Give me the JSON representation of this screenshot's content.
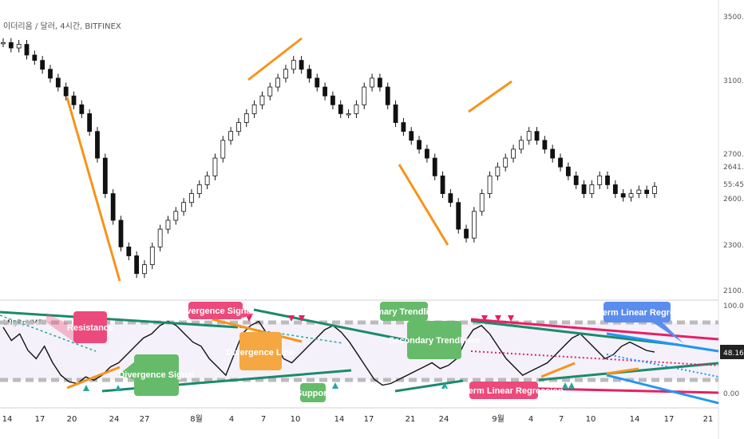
{
  "header": {
    "title": "이더리움 / 달러, 4시간, BITFINEX",
    "osc_label": "LNgRpVMFII ‧"
  },
  "price_axis": {
    "ticks": [
      "3500.00",
      "3100.00",
      "2700.00",
      "2300.00",
      "2100.00"
    ],
    "last_labels": [
      "2641.50",
      "55:45",
      "2600.00"
    ]
  },
  "osc_axis": {
    "ticks": [
      "100.00",
      "0.00"
    ],
    "last_value": "48.16"
  },
  "x_axis": {
    "ticks": [
      "14",
      "17",
      "20",
      "24",
      "27",
      "8월",
      "4",
      "7",
      "10",
      "14",
      "17",
      "21",
      "24",
      "9월",
      "4",
      "7",
      "10",
      "14",
      "17",
      "21"
    ]
  },
  "annotations": {
    "resistance": "Resistance",
    "divergence_signal_top": "Divergence Signal",
    "divergence_signal_bottom": "Divergence Signal",
    "divergence_line": "Divergence Line",
    "support": "Support",
    "primary_trendlines": "Primary Trendlines",
    "secondary_trendlines": "Secondary Trendlines",
    "longterm_regression": "Longterm Linear Regression",
    "shortterm_regression": "Shortterm Linear Regression"
  },
  "colors": {
    "up": "#26a69a",
    "down": "#ef5350",
    "candle": "#111111",
    "orange": "#f7931a",
    "teal": "#1b8a6b",
    "pink": "#e91e63",
    "blue": "#2196f3",
    "green_box": "#66bb6a",
    "orange_box": "#f5a742",
    "blue_box": "#5b8def",
    "pink_box": "#ec4a7c"
  },
  "chart_data": {
    "type": "line",
    "series": [
      {
        "values": [
          3450,
          3420,
          3440,
          3380,
          3350,
          3300,
          3250,
          3200,
          3150,
          3100,
          3050,
          2950,
          2800,
          2600,
          2450,
          2300,
          2250,
          2150,
          2200,
          2300,
          2400,
          2450,
          2500,
          2550,
          2600,
          2650,
          2700,
          2800,
          2900,
          2950,
          3000,
          3050,
          3100,
          3150,
          3200,
          3250,
          3300,
          3350,
          3300,
          3250,
          3200,
          3150,
          3100,
          3050,
          3050,
          3100,
          3200,
          3250,
          3200,
          3100,
          3000,
          2950,
          2900,
          2850,
          2800,
          2700,
          2600,
          2550,
          2400,
          2350,
          2500,
          2600,
          2700,
          2750,
          2800,
          2850,
          2900,
          2950,
          2900,
          2850,
          2800,
          2750,
          2700,
          2650,
          2600,
          2650,
          2700,
          2650,
          2600,
          2580,
          2600,
          2620,
          2600,
          2640
        ]
      },
      {
        "values": [
          78,
          62,
          70,
          50,
          40,
          55,
          35,
          20,
          12,
          10,
          18,
          14,
          20,
          30,
          35,
          45,
          55,
          65,
          70,
          80,
          85,
          80,
          70,
          60,
          55,
          40,
          30,
          20,
          45,
          70,
          80,
          85,
          70,
          60,
          40,
          35,
          45,
          55,
          65,
          75,
          80,
          72,
          60,
          45,
          30,
          15,
          8,
          10,
          15,
          20,
          25,
          30,
          35,
          28,
          32,
          40,
          60,
          75,
          80,
          70,
          55,
          40,
          30,
          20,
          25,
          30,
          35,
          45,
          55,
          65,
          70,
          60,
          50,
          40,
          45,
          55,
          60,
          55,
          50,
          48
        ]
      }
    ],
    "ylim_price": [
      2050,
      3600
    ],
    "ylim_osc": [
      -5,
      105
    ],
    "grid": false,
    "legend": "none"
  }
}
